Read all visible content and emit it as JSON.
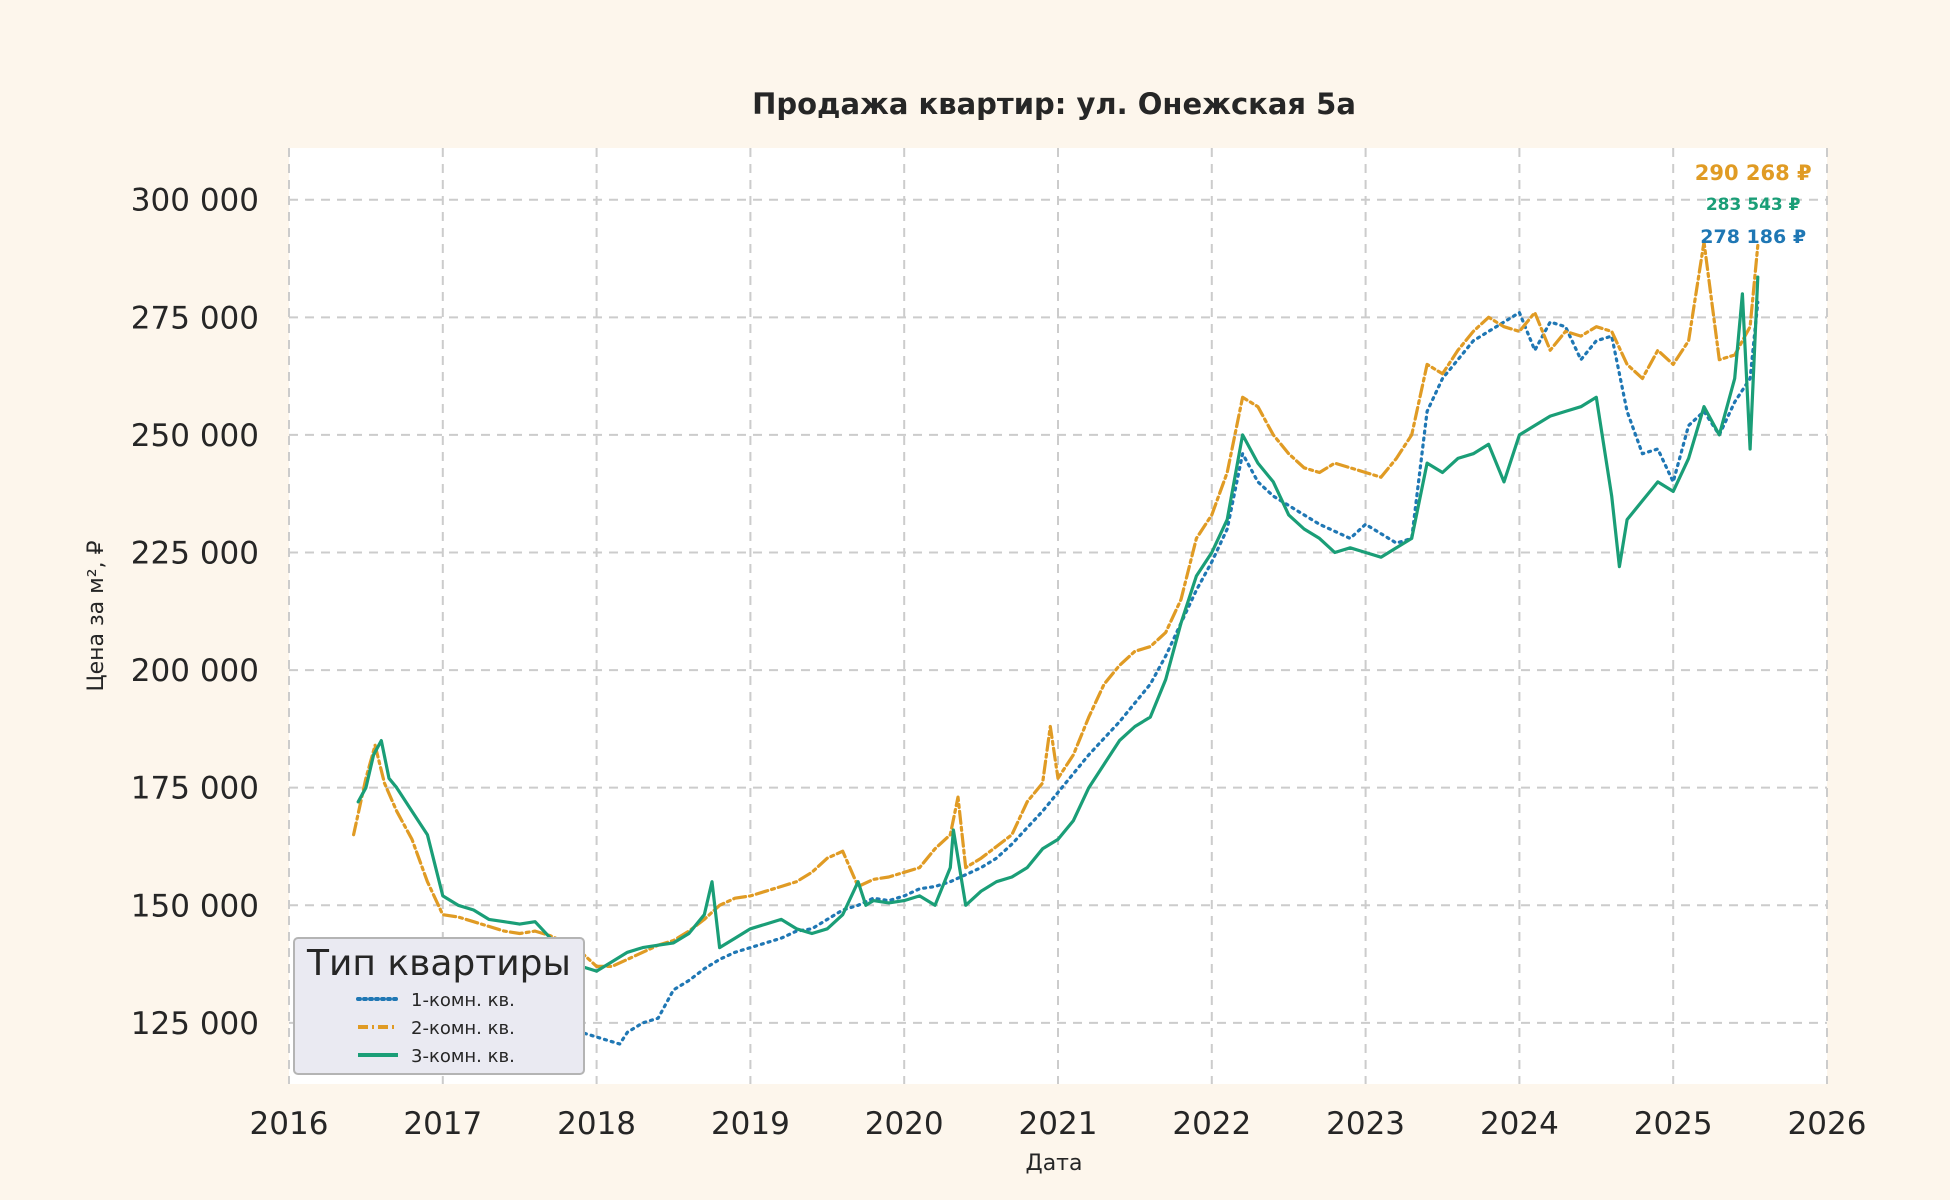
{
  "chart_data": {
    "type": "line",
    "title": "Продажа квартир: ул. Онежская 5а",
    "xlabel": "Дата",
    "ylabel": "Цена за м², ₽",
    "xlim": [
      2016,
      2026
    ],
    "ylim": [
      112000,
      311000
    ],
    "x_ticks": [
      2016,
      2017,
      2018,
      2019,
      2020,
      2021,
      2022,
      2023,
      2024,
      2025,
      2026
    ],
    "x_tick_labels": [
      "2016",
      "2017",
      "2018",
      "2019",
      "2020",
      "2021",
      "2022",
      "2023",
      "2024",
      "2025",
      "2026"
    ],
    "y_ticks": [
      125000,
      150000,
      175000,
      200000,
      225000,
      250000,
      275000,
      300000
    ],
    "y_tick_labels": [
      "125 000",
      "150 000",
      "175 000",
      "200 000",
      "225 000",
      "250 000",
      "275 000",
      "300 000"
    ],
    "grid": true,
    "legend": {
      "title": "Тип квартиры",
      "position": "lower-left"
    },
    "series": [
      {
        "name": "1-комн. кв.",
        "color": "#1f77b4",
        "style": "dotted",
        "x": [
          2016.45,
          2016.55,
          2016.62,
          2016.7,
          2016.8,
          2016.9,
          2017.0,
          2017.1,
          2017.2,
          2017.3,
          2017.4,
          2017.5,
          2017.6,
          2017.7,
          2017.8,
          2017.9,
          2018.0,
          2018.1,
          2018.15,
          2018.2,
          2018.3,
          2018.4,
          2018.5,
          2018.6,
          2018.7,
          2018.8,
          2018.9,
          2019.0,
          2019.1,
          2019.2,
          2019.3,
          2019.4,
          2019.5,
          2019.6,
          2019.7,
          2019.8,
          2019.9,
          2020.0,
          2020.1,
          2020.2,
          2020.3,
          2020.4,
          2020.5,
          2020.6,
          2020.7,
          2020.8,
          2020.9,
          2021.0,
          2021.1,
          2021.2,
          2021.3,
          2021.4,
          2021.5,
          2021.6,
          2021.7,
          2021.8,
          2021.9,
          2022.0,
          2022.1,
          2022.2,
          2022.3,
          2022.4,
          2022.5,
          2022.6,
          2022.7,
          2022.8,
          2022.9,
          2023.0,
          2023.1,
          2023.2,
          2023.3,
          2023.4,
          2023.5,
          2023.6,
          2023.7,
          2023.8,
          2023.9,
          2024.0,
          2024.1,
          2024.2,
          2024.3,
          2024.4,
          2024.5,
          2024.6,
          2024.7,
          2024.8,
          2024.9,
          2025.0,
          2025.1,
          2025.2,
          2025.3,
          2025.4,
          2025.5,
          2025.55
        ],
        "y": [
          140000,
          138500,
          137000,
          136000,
          134000,
          132500,
          131000,
          130000,
          128500,
          127500,
          126500,
          126000,
          127000,
          125500,
          124000,
          123000,
          122000,
          121000,
          120500,
          123000,
          125000,
          126000,
          132000,
          134000,
          136500,
          138500,
          140000,
          141000,
          142000,
          143000,
          144500,
          145000,
          147000,
          149000,
          150000,
          151500,
          151000,
          152000,
          153500,
          154000,
          155000,
          156500,
          158000,
          160000,
          163000,
          166500,
          170000,
          174000,
          178000,
          182000,
          185500,
          189000,
          193000,
          197000,
          203000,
          210000,
          217000,
          223000,
          230000,
          246000,
          240000,
          237000,
          235000,
          233000,
          231000,
          229500,
          228000,
          231000,
          229000,
          227000,
          228000,
          255000,
          262000,
          266000,
          270000,
          272000,
          274000,
          276000,
          268000,
          274000,
          273000,
          266000,
          270000,
          271000,
          255000,
          246000,
          247000,
          240000,
          252000,
          255000,
          250000,
          257000,
          262000,
          278186
        ]
      },
      {
        "name": "2-комн. кв.",
        "color": "#e09b24",
        "style": "dash-dot",
        "x": [
          2016.42,
          2016.5,
          2016.56,
          2016.62,
          2016.7,
          2016.8,
          2016.9,
          2017.0,
          2017.1,
          2017.2,
          2017.3,
          2017.4,
          2017.5,
          2017.6,
          2017.7,
          2017.8,
          2017.9,
          2018.0,
          2018.1,
          2018.2,
          2018.3,
          2018.4,
          2018.5,
          2018.6,
          2018.7,
          2018.8,
          2018.9,
          2019.0,
          2019.1,
          2019.2,
          2019.3,
          2019.4,
          2019.5,
          2019.6,
          2019.7,
          2019.8,
          2019.9,
          2020.0,
          2020.1,
          2020.2,
          2020.3,
          2020.35,
          2020.4,
          2020.5,
          2020.6,
          2020.7,
          2020.8,
          2020.9,
          2020.95,
          2021.0,
          2021.1,
          2021.2,
          2021.3,
          2021.4,
          2021.5,
          2021.6,
          2021.7,
          2021.8,
          2021.9,
          2022.0,
          2022.1,
          2022.2,
          2022.3,
          2022.4,
          2022.5,
          2022.6,
          2022.7,
          2022.8,
          2022.9,
          2023.0,
          2023.1,
          2023.2,
          2023.3,
          2023.4,
          2023.5,
          2023.6,
          2023.7,
          2023.8,
          2023.9,
          2024.0,
          2024.1,
          2024.2,
          2024.3,
          2024.4,
          2024.5,
          2024.6,
          2024.7,
          2024.8,
          2024.9,
          2025.0,
          2025.1,
          2025.2,
          2025.3,
          2025.4,
          2025.5,
          2025.55
        ],
        "y": [
          165000,
          177000,
          184000,
          176000,
          170000,
          164000,
          155000,
          148000,
          147500,
          146500,
          145500,
          144500,
          144000,
          144500,
          143500,
          142000,
          140000,
          137000,
          137000,
          138500,
          140000,
          141500,
          142500,
          144500,
          147000,
          150000,
          151500,
          152000,
          153000,
          154000,
          155000,
          157000,
          160000,
          161500,
          154000,
          155500,
          156000,
          157000,
          158000,
          162000,
          165000,
          173000,
          158000,
          160000,
          162500,
          165000,
          172000,
          176000,
          188000,
          177000,
          182000,
          190000,
          197000,
          201000,
          204000,
          205000,
          208000,
          215000,
          228000,
          233000,
          242000,
          258000,
          256000,
          250000,
          246000,
          243000,
          242000,
          244000,
          243000,
          242000,
          241000,
          245000,
          250000,
          265000,
          263000,
          268000,
          272000,
          275000,
          273000,
          272000,
          276000,
          268000,
          272000,
          271000,
          273000,
          272000,
          265000,
          262000,
          268000,
          265000,
          270000,
          291000,
          266000,
          267000,
          273000,
          290268
        ]
      },
      {
        "name": "3-комн. кв.",
        "color": "#1a9e77",
        "style": "solid",
        "x": [
          2016.45,
          2016.5,
          2016.55,
          2016.6,
          2016.65,
          2016.7,
          2016.8,
          2016.9,
          2017.0,
          2017.1,
          2017.2,
          2017.3,
          2017.4,
          2017.5,
          2017.6,
          2017.7,
          2017.8,
          2017.9,
          2018.0,
          2018.1,
          2018.2,
          2018.3,
          2018.4,
          2018.5,
          2018.6,
          2018.7,
          2018.75,
          2018.8,
          2018.9,
          2019.0,
          2019.1,
          2019.2,
          2019.3,
          2019.4,
          2019.5,
          2019.6,
          2019.7,
          2019.75,
          2019.8,
          2019.9,
          2020.0,
          2020.1,
          2020.2,
          2020.3,
          2020.32,
          2020.4,
          2020.5,
          2020.6,
          2020.7,
          2020.8,
          2020.9,
          2021.0,
          2021.1,
          2021.2,
          2021.3,
          2021.4,
          2021.5,
          2021.6,
          2021.7,
          2021.8,
          2021.9,
          2022.0,
          2022.1,
          2022.2,
          2022.3,
          2022.4,
          2022.5,
          2022.6,
          2022.7,
          2022.8,
          2022.9,
          2023.0,
          2023.1,
          2023.2,
          2023.3,
          2023.4,
          2023.5,
          2023.6,
          2023.7,
          2023.8,
          2023.9,
          2024.0,
          2024.1,
          2024.2,
          2024.3,
          2024.4,
          2024.5,
          2024.6,
          2024.65,
          2024.7,
          2024.8,
          2024.9,
          2025.0,
          2025.1,
          2025.2,
          2025.3,
          2025.4,
          2025.45,
          2025.5,
          2025.55
        ],
        "y": [
          172000,
          175000,
          182000,
          185000,
          177000,
          175000,
          170000,
          165000,
          152000,
          150000,
          149000,
          147000,
          146500,
          146000,
          146500,
          143000,
          140000,
          137000,
          136000,
          138000,
          140000,
          141000,
          141500,
          142000,
          144000,
          148000,
          155000,
          141000,
          143000,
          145000,
          146000,
          147000,
          145000,
          144000,
          145000,
          148000,
          155000,
          150000,
          151000,
          150500,
          151000,
          152000,
          150000,
          158000,
          166000,
          150000,
          153000,
          155000,
          156000,
          158000,
          162000,
          164000,
          168000,
          175000,
          180000,
          185000,
          188000,
          190000,
          198000,
          210000,
          220000,
          225000,
          232000,
          250000,
          244000,
          240000,
          233000,
          230000,
          228000,
          225000,
          226000,
          225000,
          224000,
          226000,
          228000,
          244000,
          242000,
          245000,
          246000,
          248000,
          240000,
          250000,
          252000,
          254000,
          255000,
          256000,
          258000,
          237000,
          222000,
          232000,
          236000,
          240000,
          238000,
          245000,
          256000,
          250000,
          262000,
          280000,
          247000,
          283543
        ]
      }
    ],
    "end_labels": [
      {
        "text": "290 268 ₽",
        "color": "#e09b24"
      },
      {
        "text": "283 543 ₽",
        "color": "#1a9e77"
      },
      {
        "text": "278 186 ₽",
        "color": "#1f77b4"
      }
    ]
  }
}
